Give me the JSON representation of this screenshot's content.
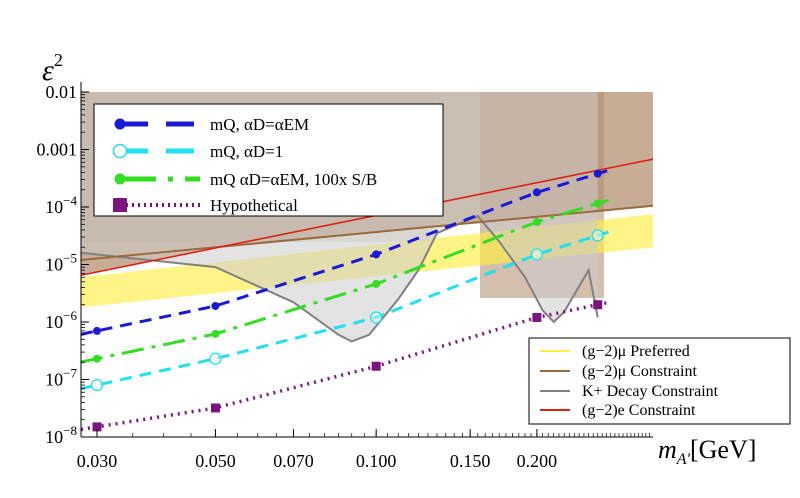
{
  "chart_data": {
    "type": "line",
    "xscale": "log",
    "yscale": "log",
    "xlim": [
      0.028,
      0.33
    ],
    "ylim": [
      1e-08,
      0.01
    ],
    "xlabel_main": "m",
    "xlabel_sub": "A'",
    "xlabel_unit": "[GeV]",
    "ylabel_base": "ε",
    "ylabel_exp": "2",
    "x_ticks": [
      {
        "value": 0.03,
        "label": "0.030"
      },
      {
        "value": 0.05,
        "label": "0.050"
      },
      {
        "value": 0.07,
        "label": "0.070"
      },
      {
        "value": 0.1,
        "label": "0.100"
      },
      {
        "value": 0.15,
        "label": "0.150"
      },
      {
        "value": 0.2,
        "label": "0.200"
      }
    ],
    "y_ticks": [
      {
        "value": 0.01,
        "text": "0.01",
        "mant": "",
        "exp": ""
      },
      {
        "value": 0.001,
        "text": "0.001",
        "mant": "",
        "exp": ""
      },
      {
        "value": 0.0001,
        "text": "",
        "mant": "10",
        "exp": "−4"
      },
      {
        "value": 1e-05,
        "text": "",
        "mant": "10",
        "exp": "−5"
      },
      {
        "value": 1e-06,
        "text": "",
        "mant": "10",
        "exp": "−6"
      },
      {
        "value": 1e-07,
        "text": "",
        "mant": "10",
        "exp": "−7"
      },
      {
        "value": 1e-08,
        "text": "",
        "mant": "10",
        "exp": "−8"
      }
    ],
    "series": [
      {
        "name": "mQ, αD=αEM",
        "style": "dashed",
        "marker": "circle-filled",
        "color": "#1a1ad6",
        "x": [
          0.03,
          0.05,
          0.1,
          0.2,
          0.26
        ],
        "y": [
          7e-07,
          1.9e-06,
          1.5e-05,
          0.00018,
          0.00038
        ]
      },
      {
        "name": "mQ, αD=1",
        "style": "dashed",
        "marker": "circle-open",
        "color": "#22e0f0",
        "x": [
          0.03,
          0.05,
          0.1,
          0.2,
          0.26
        ],
        "y": [
          8e-08,
          2.3e-07,
          1.2e-06,
          1.5e-05,
          3.2e-05
        ]
      },
      {
        "name": "mQ αD=αEM, 100x S/B",
        "style": "dashdot",
        "marker": "circle-filled",
        "color": "#33dd22",
        "x": [
          0.03,
          0.05,
          0.1,
          0.2,
          0.26
        ],
        "y": [
          2.3e-07,
          6.2e-07,
          4.6e-06,
          5.5e-05,
          0.000115
        ]
      },
      {
        "name": "Hypothetical",
        "style": "dotted",
        "marker": "square-filled",
        "color": "#7a1480",
        "x": [
          0.03,
          0.05,
          0.1,
          0.2,
          0.26
        ],
        "y": [
          1.5e-08,
          3.2e-08,
          1.7e-07,
          1.2e-06,
          2e-06
        ]
      }
    ],
    "constraints": [
      {
        "name": "(g−2)μ Preferred",
        "color": "#ffee44",
        "kind": "band",
        "x": [
          0.028,
          0.33
        ],
        "y_low": [
          1.8e-06,
          2e-05
        ],
        "y_high": [
          6e-06,
          7.5e-05
        ]
      },
      {
        "name": "(g−2)μ Constraint",
        "color": "#9a6a3a",
        "kind": "line",
        "x": [
          0.028,
          0.33
        ],
        "y": [
          1.2e-05,
          0.000105
        ]
      },
      {
        "name": "K+ Decay Constraint",
        "color": "#808080",
        "kind": "curve",
        "x": [
          0.028,
          0.05,
          0.07,
          0.085,
          0.09,
          0.097,
          0.11,
          0.12,
          0.13,
          0.155,
          0.17,
          0.19,
          0.205,
          0.215,
          0.225,
          0.235,
          0.25,
          0.26
        ],
        "y": [
          1.6e-05,
          9e-06,
          2.2e-06,
          6e-07,
          4.6e-07,
          6e-07,
          2.5e-06,
          8e-06,
          3.5e-05,
          7e-05,
          2.5e-05,
          6e-06,
          1.6e-06,
          1e-06,
          1.5e-06,
          3e-06,
          8e-06,
          1.2e-06
        ]
      },
      {
        "name": "(g−2)e Constraint",
        "color": "#dd2211",
        "kind": "line",
        "x": [
          0.028,
          0.33
        ],
        "y": [
          6.5e-06,
          0.00068
        ]
      }
    ],
    "excluded_regions_color": "#b08a6a",
    "legend_main_position": "top-left",
    "legend_constraints_position": "bottom-right"
  }
}
